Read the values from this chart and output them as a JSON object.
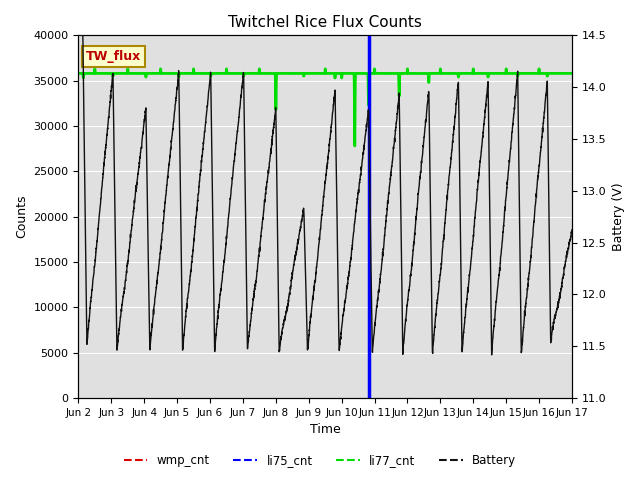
{
  "title": "Twitchel Rice Flux Counts",
  "xlabel": "Time",
  "ylabel_left": "Counts",
  "ylabel_right": "Battery (V)",
  "ylim_left": [
    0,
    40000
  ],
  "ylim_right": [
    11.0,
    14.5
  ],
  "yticks_left": [
    0,
    5000,
    10000,
    15000,
    20000,
    25000,
    30000,
    35000,
    40000
  ],
  "yticks_right": [
    11.0,
    11.5,
    12.0,
    12.5,
    13.0,
    13.5,
    14.0,
    14.5
  ],
  "xtick_positions": [
    0,
    1,
    2,
    3,
    4,
    5,
    6,
    7,
    8,
    9,
    10,
    11,
    12,
    13,
    14,
    15
  ],
  "xtick_labels": [
    "Jun 2",
    "Jun 3",
    "Jun 4",
    "Jun 5",
    "Jun 6",
    "Jun 7",
    "Jun 8",
    "Jun 9",
    "Jun 10",
    "Jun 11",
    "Jun 12",
    "Jun 13",
    "Jun 14",
    "Jun 15",
    "Jun 16",
    "Jun 17"
  ],
  "xlim": [
    0,
    15
  ],
  "li77_cnt_value": 35800,
  "li75_cnt_x": 8.82,
  "bg_color": "#e0e0e0",
  "tw_flux_box_color": "#ffffcc",
  "tw_flux_text_color": "#bb0000",
  "tw_flux_border_color": "#aa8800",
  "battery_color": "#111111",
  "li75_color": "#0000ff",
  "li77_color": "#00dd00",
  "wmp_color": "#dd0000",
  "li77_linewidth": 2.0,
  "li75_linewidth": 2.5,
  "battery_linewidth": 1.0
}
